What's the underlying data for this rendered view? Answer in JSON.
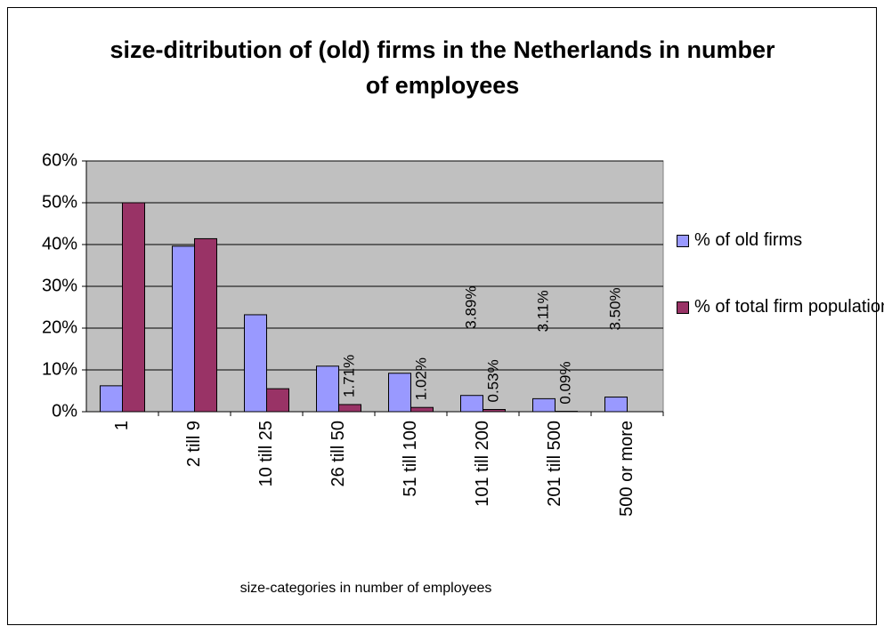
{
  "chart_data": {
    "type": "bar",
    "title": "size-ditribution of (old) firms in the Netherlands in number of employees",
    "x_label": "size-categories in number of employees",
    "categories": [
      "1",
      "2 till 9",
      "10 till 25",
      "26 till 50",
      "51 till 100",
      "101 till 200",
      "201 till 500",
      "500 or more"
    ],
    "series": [
      {
        "name": "% of old firms",
        "color": "#9999ff",
        "values": [
          6.2,
          39.6,
          23.2,
          10.9,
          9.2,
          3.89,
          3.11,
          3.5
        ],
        "value_labels": [
          null,
          null,
          null,
          null,
          null,
          "3.89%",
          "3.11%",
          "3.50%"
        ]
      },
      {
        "name": "% of total firm population",
        "color": "#993366",
        "values": [
          50,
          41.4,
          5.5,
          1.71,
          1.02,
          0.53,
          0.09,
          null
        ],
        "value_labels": [
          null,
          null,
          null,
          "1.71%",
          "1.02%",
          "0.53%",
          "0.09%",
          null
        ]
      }
    ],
    "ylim": [
      0,
      60
    ],
    "yticks": [
      {
        "value": 0,
        "label": "0%"
      },
      {
        "value": 10,
        "label": "10%"
      },
      {
        "value": 20,
        "label": "20%"
      },
      {
        "value": 30,
        "label": "30%"
      },
      {
        "value": 40,
        "label": "40%"
      },
      {
        "value": 50,
        "label": "50%"
      },
      {
        "value": 60,
        "label": "60%"
      }
    ],
    "grid": true,
    "legend": "right"
  }
}
